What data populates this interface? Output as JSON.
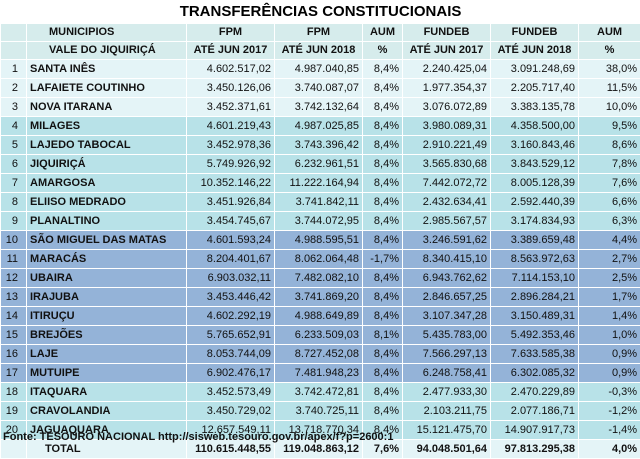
{
  "title": "TRANSFERÊNCIAS CONSTITUCIONAIS",
  "headers": {
    "row1": [
      "MUNICIPIOS",
      "FPM",
      "FPM",
      "AUM",
      "FUNDEB",
      "FUNDEB",
      "AUM"
    ],
    "row2": [
      "VALE DO JIQUIRIÇÁ",
      "ATÉ JUN 2017",
      "ATÉ JUN 2018",
      "%",
      "ATÉ JUN 2017",
      "ATÉ JUN 2018",
      "%"
    ]
  },
  "rows": [
    {
      "n": "1",
      "municipio": "SANTA INÊS",
      "fpm2017": "4.602.517,02",
      "fpm2018": "4.987.040,85",
      "aum_fpm": "8,4%",
      "fundeb2017": "2.240.425,04",
      "fundeb2018": "3.091.248,69",
      "aum_fundeb": "38,0%"
    },
    {
      "n": "2",
      "municipio": "LAFAIETE COUTINHO",
      "fpm2017": "3.450.126,06",
      "fpm2018": "3.740.087,07",
      "aum_fpm": "8,4%",
      "fundeb2017": "1.977.354,37",
      "fundeb2018": "2.205.717,40",
      "aum_fundeb": "11,5%"
    },
    {
      "n": "3",
      "municipio": "NOVA ITARANA",
      "fpm2017": "3.452.371,61",
      "fpm2018": "3.742.132,64",
      "aum_fpm": "8,4%",
      "fundeb2017": "3.076.072,89",
      "fundeb2018": "3.383.135,78",
      "aum_fundeb": "10,0%"
    },
    {
      "n": "4",
      "municipio": "MILAGES",
      "fpm2017": "4.601.219,43",
      "fpm2018": "4.987.025,85",
      "aum_fpm": "8,4%",
      "fundeb2017": "3.980.089,31",
      "fundeb2018": "4.358.500,00",
      "aum_fundeb": "9,5%"
    },
    {
      "n": "5",
      "municipio": "LAJEDO TABOCAL",
      "fpm2017": "3.452.978,36",
      "fpm2018": "3.743.396,42",
      "aum_fpm": "8,4%",
      "fundeb2017": "2.910.221,49",
      "fundeb2018": "3.160.843,46",
      "aum_fundeb": "8,6%"
    },
    {
      "n": "6",
      "municipio": "JIQUIRIÇÁ",
      "fpm2017": "5.749.926,92",
      "fpm2018": "6.232.961,51",
      "aum_fpm": "8,4%",
      "fundeb2017": "3.565.830,68",
      "fundeb2018": "3.843.529,12",
      "aum_fundeb": "7,8%"
    },
    {
      "n": "7",
      "municipio": "AMARGOSA",
      "fpm2017": "10.352.146,22",
      "fpm2018": "11.222.164,94",
      "aum_fpm": "8,4%",
      "fundeb2017": "7.442.072,72",
      "fundeb2018": "8.005.128,39",
      "aum_fundeb": "7,6%"
    },
    {
      "n": "8",
      "municipio": "ELIISO MEDRADO",
      "fpm2017": "3.451.926,84",
      "fpm2018": "3.741.842,11",
      "aum_fpm": "8,4%",
      "fundeb2017": "2.432.634,41",
      "fundeb2018": "2.592.440,39",
      "aum_fundeb": "6,6%"
    },
    {
      "n": "9",
      "municipio": "PLANALTINO",
      "fpm2017": "3.454.745,67",
      "fpm2018": "3.744.072,95",
      "aum_fpm": "8,4%",
      "fundeb2017": "2.985.567,57",
      "fundeb2018": "3.174.834,93",
      "aum_fundeb": "6,3%"
    },
    {
      "n": "10",
      "municipio": "SÃO MIGUEL DAS MATAS",
      "fpm2017": "4.601.593,24",
      "fpm2018": "4.988.595,51",
      "aum_fpm": "8,4%",
      "fundeb2017": "3.246.591,62",
      "fundeb2018": "3.389.659,48",
      "aum_fundeb": "4,4%"
    },
    {
      "n": "11",
      "municipio": "MARACÁS",
      "fpm2017": "8.204.401,67",
      "fpm2018": "8.062.064,48",
      "aum_fpm": "-1,7%",
      "fundeb2017": "8.340.415,10",
      "fundeb2018": "8.563.972,63",
      "aum_fundeb": "2,7%"
    },
    {
      "n": "12",
      "municipio": "UBAIRA",
      "fpm2017": "6.903.032,11",
      "fpm2018": "7.482.082,10",
      "aum_fpm": "8,4%",
      "fundeb2017": "6.943.762,62",
      "fundeb2018": "7.114.153,10",
      "aum_fundeb": "2,5%"
    },
    {
      "n": "13",
      "municipio": "IRAJUBA",
      "fpm2017": "3.453.446,42",
      "fpm2018": "3.741.869,20",
      "aum_fpm": "8,4%",
      "fundeb2017": "2.846.657,25",
      "fundeb2018": "2.896.284,21",
      "aum_fundeb": "1,7%"
    },
    {
      "n": "14",
      "municipio": "ITIRUÇU",
      "fpm2017": "4.602.292,19",
      "fpm2018": "4.988.649,89",
      "aum_fpm": "8,4%",
      "fundeb2017": "3.107.347,28",
      "fundeb2018": "3.150.489,31",
      "aum_fundeb": "1,4%"
    },
    {
      "n": "15",
      "municipio": "BREJÕES",
      "fpm2017": "5.765.652,91",
      "fpm2018": "6.233.509,03",
      "aum_fpm": "8,1%",
      "fundeb2017": "5.435.783,00",
      "fundeb2018": "5.492.353,46",
      "aum_fundeb": "1,0%"
    },
    {
      "n": "16",
      "municipio": "LAJE",
      "fpm2017": "8.053.744,09",
      "fpm2018": "8.727.452,08",
      "aum_fpm": "8,4%",
      "fundeb2017": "7.566.297,13",
      "fundeb2018": "7.633.585,38",
      "aum_fundeb": "0,9%"
    },
    {
      "n": "17",
      "municipio": "MUTUIPE",
      "fpm2017": "6.902.476,17",
      "fpm2018": "7.481.948,23",
      "aum_fpm": "8,4%",
      "fundeb2017": "6.248.758,41",
      "fundeb2018": "6.302.085,32",
      "aum_fundeb": "0,9%"
    },
    {
      "n": "18",
      "municipio": "ITAQUARA",
      "fpm2017": "3.452.573,49",
      "fpm2018": "3.742.472,81",
      "aum_fpm": "8,4%",
      "fundeb2017": "2.477.933,30",
      "fundeb2018": "2.470.229,89",
      "aum_fundeb": "-0,3%"
    },
    {
      "n": "19",
      "municipio": "CRAVOLANDIA",
      "fpm2017": "3.450.729,02",
      "fpm2018": "3.740.725,11",
      "aum_fpm": "8,4%",
      "fundeb2017": "2.103.211,75",
      "fundeb2018": "2.077.186,71",
      "aum_fundeb": "-1,2%"
    },
    {
      "n": "20",
      "municipio": "JAGUAQUARA",
      "fpm2017": "12.657.549,11",
      "fpm2018": "13.718.770,34",
      "aum_fpm": "8,4%",
      "fundeb2017": "15.121.475,70",
      "fundeb2018": "14.907.917,73",
      "aum_fundeb": "-1,4%"
    }
  ],
  "total": {
    "label": "TOTAL",
    "fpm2017": "110.615.448,55",
    "fpm2018": "119.048.863,12",
    "aum_fpm": "7,6%",
    "fundeb2017": "94.048.501,64",
    "fundeb2018": "97.813.295,38",
    "aum_fundeb": "4,0%"
  },
  "source": "Fonte: TESOURO NACIONAL http://sisweb.tesouro.gov.br/apex/f?p=2600:1",
  "colors": {
    "group1": "#e4f4f7",
    "group2": "#b8e2e8",
    "group3": "#94b3d8",
    "group4": "#b8e2e8"
  }
}
